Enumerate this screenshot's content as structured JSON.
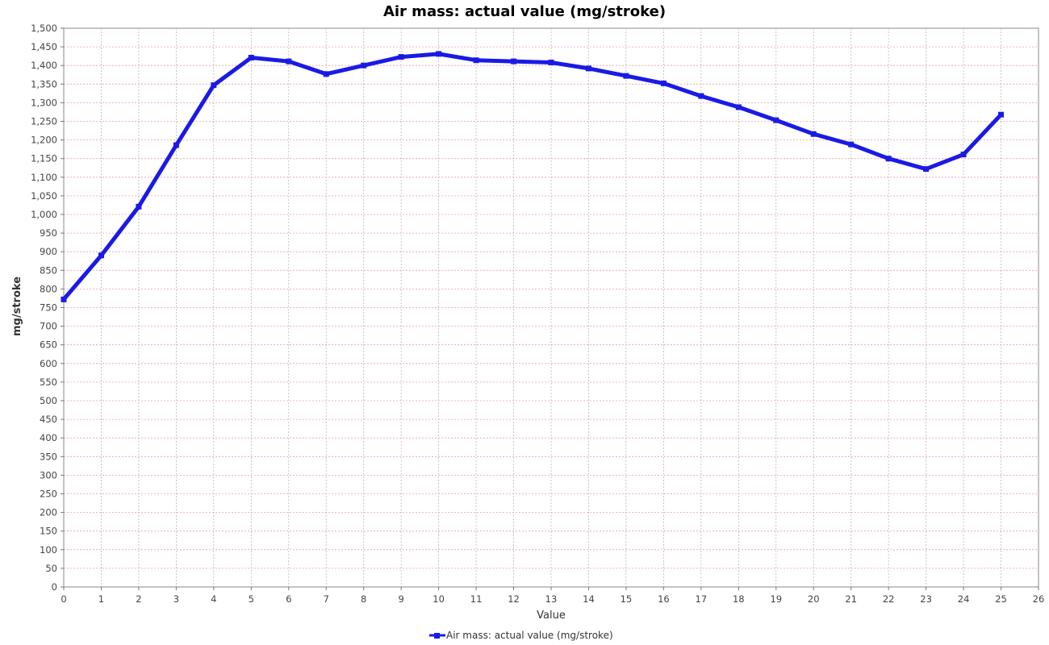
{
  "chart_data": {
    "type": "line",
    "title": "Air mass: actual value (mg/stroke)",
    "xlabel": "Value",
    "ylabel": "mg/stroke",
    "xlim": [
      0,
      26
    ],
    "ylim": [
      0,
      1500
    ],
    "x_ticks": [
      0,
      1,
      2,
      3,
      4,
      5,
      6,
      7,
      8,
      9,
      10,
      11,
      12,
      13,
      14,
      15,
      16,
      17,
      18,
      19,
      20,
      21,
      22,
      23,
      24,
      25,
      26
    ],
    "y_ticks": [
      0,
      50,
      100,
      150,
      200,
      250,
      300,
      350,
      400,
      450,
      500,
      550,
      600,
      650,
      700,
      750,
      800,
      850,
      900,
      950,
      1000,
      1050,
      1100,
      1150,
      1200,
      1250,
      1300,
      1350,
      1400,
      1450,
      1500
    ],
    "grid": true,
    "legend_position": "bottom",
    "series": [
      {
        "name": "Air mass: actual value (mg/stroke)",
        "color": "#1a1ae6",
        "x": [
          0,
          1,
          2,
          3,
          4,
          5,
          6,
          7,
          8,
          9,
          10,
          11,
          12,
          13,
          14,
          15,
          16,
          17,
          18,
          19,
          20,
          21,
          22,
          23,
          24,
          25
        ],
        "values": [
          772,
          890,
          1021,
          1186,
          1347,
          1421,
          1411,
          1377,
          1400,
          1423,
          1431,
          1414,
          1411,
          1408,
          1392,
          1372,
          1352,
          1318,
          1288,
          1253,
          1216,
          1188,
          1150,
          1122,
          1161,
          1268
        ]
      }
    ]
  }
}
